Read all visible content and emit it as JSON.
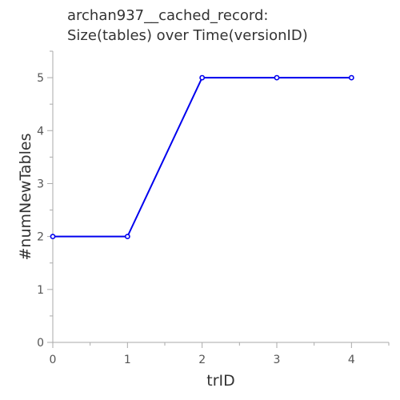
{
  "chart_data": {
    "type": "line",
    "title_lines": [
      "archan937__cached_record:",
      "Size(tables) over Time(versionID)"
    ],
    "xlabel": "trID",
    "ylabel": "#numNewTables",
    "x": [
      0,
      1,
      2,
      3,
      4
    ],
    "series": [
      {
        "values": [
          2,
          2,
          5,
          5,
          5
        ]
      }
    ],
    "xlim": [
      0,
      4.5
    ],
    "ylim": [
      0,
      5.5
    ],
    "xticks": [
      "0",
      "1",
      "2",
      "3",
      "4"
    ],
    "yticks": [
      "0",
      "1",
      "2",
      "3",
      "4",
      "5"
    ],
    "grid": false,
    "line_color": "#0000ee",
    "axis_color": "#aaaaaa"
  }
}
